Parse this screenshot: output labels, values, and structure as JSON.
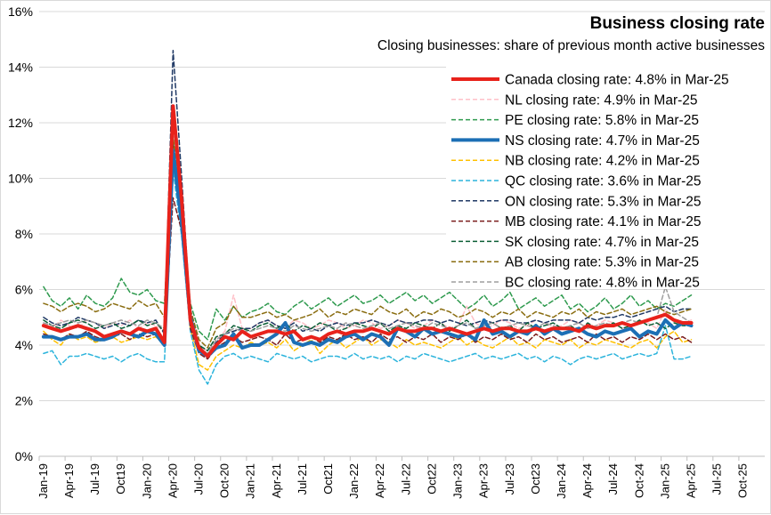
{
  "chart_data": {
    "type": "line",
    "title": "Business closing rate",
    "subtitle": "Closing businesses: share of previous month active businesses",
    "xlabel": "",
    "ylabel": "",
    "ylim": [
      0,
      16
    ],
    "yticks": [
      "0%",
      "2%",
      "4%",
      "6%",
      "8%",
      "10%",
      "12%",
      "14%",
      "16%"
    ],
    "x_start": "Jan-19",
    "x_ticks": [
      "Jan-19",
      "Apr-19",
      "Jul-19",
      "Oct19",
      "Jan-20",
      "Apr-20",
      "Jul-20",
      "Oct-20",
      "Jan-21",
      "Apr-21",
      "Jul-21",
      "Oct21",
      "Jan-22",
      "Apr-22",
      "Jul-22",
      "Oct22",
      "Jan-23",
      "Apr-23",
      "Jul-23",
      "Oct23",
      "Jan-24",
      "Apr-24",
      "Jul-24",
      "Oct-24",
      "Jan-25",
      "Apr-25",
      "Jul-25",
      "Oct-25"
    ],
    "grid": true,
    "legend_position": "top-right",
    "series": [
      {
        "name": "Canada closing rate: 4.8% in Mar-25",
        "color": "#e8221b",
        "width": 4,
        "dash": "",
        "values": [
          4.7,
          4.6,
          4.5,
          4.6,
          4.7,
          4.6,
          4.5,
          4.3,
          4.4,
          4.5,
          4.4,
          4.6,
          4.5,
          4.6,
          4.1,
          12.6,
          9.2,
          4.9,
          3.9,
          3.6,
          4.0,
          4.3,
          4.2,
          4.5,
          4.3,
          4.4,
          4.5,
          4.5,
          4.4,
          4.5,
          4.2,
          4.3,
          4.2,
          4.4,
          4.5,
          4.4,
          4.5,
          4.5,
          4.6,
          4.5,
          4.4,
          4.6,
          4.5,
          4.5,
          4.6,
          4.6,
          4.5,
          4.6,
          4.5,
          4.4,
          4.5,
          4.6,
          4.5,
          4.6,
          4.6,
          4.5,
          4.5,
          4.6,
          4.5,
          4.6,
          4.6,
          4.6,
          4.5,
          4.7,
          4.6,
          4.7,
          4.7,
          4.8,
          4.7,
          4.8,
          4.9,
          5.0,
          5.1,
          4.9,
          4.8,
          4.8
        ]
      },
      {
        "name": "NL closing rate: 4.9% in Mar-25",
        "color": "#ffc0c8",
        "width": 1.5,
        "dash": "5,3",
        "values": [
          4.8,
          4.6,
          4.9,
          4.7,
          4.6,
          4.9,
          4.8,
          4.6,
          4.8,
          4.7,
          4.9,
          4.6,
          4.8,
          4.7,
          4.5,
          11.6,
          8.8,
          5.0,
          3.9,
          3.8,
          4.2,
          4.5,
          5.8,
          4.6,
          4.6,
          4.8,
          4.9,
          4.7,
          4.6,
          4.9,
          4.8,
          4.6,
          4.7,
          4.9,
          4.8,
          4.6,
          4.7,
          4.9,
          4.8,
          4.6,
          4.7,
          4.9,
          4.8,
          4.6,
          4.7,
          4.9,
          4.8,
          4.6,
          4.7,
          5.4,
          4.8,
          4.6,
          4.7,
          4.9,
          4.8,
          4.6,
          4.7,
          4.9,
          4.8,
          4.6,
          4.7,
          4.9,
          4.8,
          4.6,
          4.7,
          4.9,
          4.8,
          4.6,
          4.7,
          4.9,
          4.8,
          4.6,
          5.3,
          4.9,
          4.8,
          4.9
        ]
      },
      {
        "name": "PE closing rate: 5.8% in Mar-25",
        "color": "#2e9a4e",
        "width": 1.5,
        "dash": "5,3",
        "values": [
          6.1,
          5.6,
          5.4,
          5.7,
          5.3,
          5.8,
          5.5,
          5.4,
          5.7,
          6.4,
          5.9,
          5.8,
          6.0,
          5.6,
          5.5,
          11.4,
          8.9,
          5.5,
          4.5,
          4.2,
          5.3,
          4.9,
          5.4,
          5.0,
          5.2,
          5.3,
          5.5,
          5.2,
          5.1,
          5.4,
          5.6,
          5.3,
          5.5,
          5.7,
          5.4,
          5.6,
          5.8,
          5.5,
          5.6,
          5.8,
          5.5,
          5.7,
          5.9,
          5.6,
          5.8,
          5.5,
          5.7,
          5.9,
          5.6,
          5.3,
          5.5,
          5.8,
          5.4,
          5.6,
          5.9,
          5.3,
          5.5,
          5.7,
          5.4,
          5.6,
          5.8,
          5.3,
          5.5,
          5.2,
          5.4,
          5.7,
          5.3,
          5.5,
          5.8,
          5.4,
          5.6,
          5.3,
          5.5,
          5.4,
          5.6,
          5.8
        ]
      },
      {
        "name": "NS closing rate: 4.7% in Mar-25",
        "color": "#1c6fb5",
        "width": 4,
        "dash": "",
        "values": [
          4.3,
          4.3,
          4.2,
          4.3,
          4.3,
          4.4,
          4.2,
          4.2,
          4.3,
          4.5,
          4.4,
          4.3,
          4.5,
          4.4,
          4.0,
          11.0,
          8.4,
          5.0,
          3.8,
          3.6,
          3.9,
          4.0,
          4.4,
          3.9,
          4.0,
          4.0,
          4.2,
          4.4,
          4.8,
          4.1,
          4.0,
          4.1,
          4.0,
          4.2,
          4.1,
          4.3,
          4.4,
          4.2,
          4.4,
          4.3,
          4.0,
          4.6,
          4.5,
          4.3,
          4.6,
          4.4,
          4.5,
          4.4,
          4.3,
          4.4,
          4.2,
          4.9,
          4.4,
          4.5,
          4.3,
          4.5,
          4.4,
          4.7,
          4.4,
          4.6,
          4.4,
          4.5,
          4.6,
          4.4,
          4.3,
          4.5,
          4.4,
          4.5,
          4.6,
          4.3,
          4.5,
          4.4,
          4.9,
          4.6,
          4.8,
          4.7
        ]
      },
      {
        "name": "NB closing rate: 4.2% in Mar-25",
        "color": "#ffc000",
        "width": 1.5,
        "dash": "5,3",
        "values": [
          4.5,
          4.2,
          4.0,
          4.4,
          4.2,
          4.3,
          4.1,
          4.2,
          4.3,
          4.1,
          4.2,
          4.3,
          4.2,
          4.3,
          4.0,
          10.9,
          8.3,
          4.6,
          3.3,
          3.1,
          3.6,
          3.8,
          4.0,
          3.9,
          4.1,
          4.0,
          4.1,
          3.9,
          4.2,
          3.8,
          4.0,
          4.2,
          3.7,
          4.0,
          4.2,
          3.9,
          4.1,
          4.3,
          4.0,
          4.2,
          4.1,
          3.9,
          4.2,
          4.0,
          4.1,
          4.0,
          3.9,
          4.1,
          4.3,
          4.0,
          4.2,
          4.0,
          3.9,
          4.1,
          4.3,
          4.0,
          4.1,
          3.9,
          4.2,
          4.1,
          4.0,
          4.2,
          3.9,
          4.1,
          4.0,
          4.2,
          4.1,
          4.0,
          3.9,
          4.1,
          4.2,
          3.9,
          4.3,
          4.5,
          4.1,
          4.2
        ]
      },
      {
        "name": "QC closing rate: 3.6% in Mar-25",
        "color": "#2cb4dc",
        "width": 1.5,
        "dash": "5,3",
        "values": [
          3.7,
          3.8,
          3.3,
          3.6,
          3.6,
          3.7,
          3.6,
          3.5,
          3.6,
          3.4,
          3.6,
          3.7,
          3.5,
          3.4,
          3.4,
          10.3,
          7.9,
          4.5,
          3.1,
          2.6,
          3.3,
          3.6,
          3.7,
          3.5,
          3.6,
          3.5,
          3.4,
          3.7,
          3.6,
          3.5,
          3.6,
          3.4,
          3.5,
          3.6,
          3.6,
          3.5,
          3.7,
          3.5,
          3.6,
          3.5,
          3.6,
          3.4,
          3.6,
          3.5,
          3.7,
          3.6,
          3.5,
          3.4,
          3.5,
          3.6,
          3.7,
          3.5,
          3.6,
          3.5,
          3.6,
          3.7,
          3.5,
          3.6,
          3.4,
          3.6,
          3.5,
          3.3,
          3.5,
          3.6,
          3.5,
          3.6,
          3.7,
          3.5,
          3.6,
          3.7,
          3.6,
          3.7,
          4.7,
          3.5,
          3.5,
          3.6
        ]
      },
      {
        "name": "ON closing rate: 5.3% in Mar-25",
        "color": "#1f3864",
        "width": 1.5,
        "dash": "5,3",
        "values": [
          5.0,
          4.8,
          4.7,
          4.8,
          5.0,
          4.9,
          4.8,
          4.6,
          4.7,
          4.8,
          4.7,
          4.9,
          4.8,
          4.9,
          4.4,
          14.6,
          10.0,
          5.2,
          4.0,
          3.6,
          4.1,
          4.4,
          4.5,
          4.6,
          4.6,
          4.8,
          4.9,
          4.7,
          4.6,
          4.8,
          4.5,
          4.6,
          4.5,
          4.7,
          4.8,
          4.7,
          4.8,
          4.8,
          4.9,
          4.8,
          4.7,
          4.9,
          4.8,
          4.8,
          4.9,
          4.9,
          4.8,
          4.9,
          4.8,
          4.7,
          4.8,
          4.9,
          4.8,
          4.9,
          4.9,
          4.8,
          4.8,
          4.9,
          4.8,
          4.9,
          4.9,
          4.9,
          4.8,
          5.0,
          4.9,
          5.0,
          5.0,
          5.1,
          5.0,
          5.1,
          5.2,
          5.3,
          5.4,
          5.2,
          5.3,
          5.3
        ]
      },
      {
        "name": "MB closing rate: 4.1% in Mar-25",
        "color": "#7b1c1c",
        "width": 1.5,
        "dash": "5,3",
        "values": [
          4.4,
          4.3,
          4.2,
          4.4,
          4.3,
          4.5,
          4.3,
          4.2,
          4.3,
          4.4,
          4.2,
          4.4,
          4.3,
          4.4,
          4.1,
          9.3,
          8.1,
          4.6,
          3.7,
          3.5,
          3.9,
          4.1,
          4.3,
          4.1,
          4.2,
          4.3,
          4.2,
          4.0,
          4.4,
          4.1,
          4.2,
          4.3,
          4.1,
          4.3,
          4.2,
          4.4,
          4.2,
          4.3,
          4.1,
          4.4,
          4.2,
          4.3,
          4.1,
          4.3,
          4.2,
          4.4,
          4.1,
          4.3,
          4.2,
          4.4,
          4.1,
          4.3,
          4.2,
          4.4,
          4.2,
          4.3,
          4.1,
          4.4,
          4.2,
          4.3,
          4.1,
          4.2,
          4.3,
          4.1,
          4.4,
          4.2,
          4.3,
          4.1,
          4.3,
          4.2,
          4.4,
          4.2,
          4.4,
          4.2,
          4.3,
          4.1
        ]
      },
      {
        "name": "SK closing rate: 4.7% in Mar-25",
        "color": "#0b5e35",
        "width": 1.5,
        "dash": "5,3",
        "values": [
          4.9,
          4.7,
          4.6,
          4.8,
          4.9,
          4.8,
          4.6,
          4.7,
          4.8,
          4.6,
          4.7,
          4.9,
          4.7,
          4.8,
          4.5,
          11.3,
          8.7,
          4.9,
          4.0,
          3.8,
          4.3,
          4.4,
          4.7,
          4.6,
          4.5,
          4.7,
          4.8,
          4.6,
          4.8,
          4.5,
          4.7,
          4.6,
          4.8,
          4.7,
          4.5,
          4.6,
          4.8,
          4.7,
          4.6,
          4.8,
          4.5,
          4.7,
          4.6,
          4.8,
          4.7,
          4.6,
          4.8,
          4.5,
          4.7,
          4.9,
          4.6,
          4.7,
          4.8,
          4.6,
          4.7,
          4.5,
          4.8,
          4.6,
          4.7,
          4.8,
          4.6,
          4.7,
          4.5,
          4.8,
          4.6,
          4.7,
          4.8,
          4.6,
          4.7,
          4.9,
          4.7,
          4.8,
          4.6,
          4.8,
          4.7,
          4.7
        ]
      },
      {
        "name": "AB closing rate: 5.3% in Mar-25",
        "color": "#8a6d10",
        "width": 1.5,
        "dash": "5,3",
        "values": [
          5.5,
          5.4,
          5.2,
          5.4,
          5.5,
          5.4,
          5.2,
          5.3,
          5.5,
          5.4,
          5.3,
          5.6,
          5.4,
          5.5,
          5.0,
          11.5,
          9.0,
          5.3,
          4.2,
          3.9,
          4.6,
          4.8,
          5.4,
          5.0,
          5.0,
          5.1,
          5.2,
          5.0,
          5.1,
          4.9,
          5.0,
          5.1,
          5.3,
          5.0,
          5.2,
          5.1,
          5.3,
          5.2,
          5.1,
          5.4,
          5.2,
          5.1,
          5.3,
          5.0,
          5.2,
          5.1,
          5.3,
          5.2,
          5.0,
          5.1,
          5.3,
          5.2,
          5.0,
          5.2,
          5.1,
          5.3,
          5.0,
          5.2,
          5.1,
          5.0,
          5.2,
          5.1,
          5.3,
          5.0,
          5.2,
          5.1,
          5.2,
          5.3,
          5.1,
          5.2,
          5.3,
          5.4,
          5.2,
          5.1,
          5.2,
          5.3
        ]
      },
      {
        "name": "BC closing rate: 4.8% in Mar-25",
        "color": "#9e9e9e",
        "width": 1.5,
        "dash": "5,3",
        "values": [
          4.8,
          4.7,
          4.8,
          4.9,
          4.8,
          4.9,
          4.8,
          4.7,
          4.8,
          4.9,
          4.8,
          4.7,
          4.9,
          4.8,
          4.6,
          12.0,
          9.1,
          5.0,
          3.9,
          3.7,
          4.2,
          4.4,
          4.6,
          4.5,
          4.5,
          4.6,
          4.7,
          4.6,
          4.5,
          4.7,
          4.6,
          4.5,
          4.6,
          4.7,
          4.6,
          4.8,
          4.7,
          4.6,
          4.7,
          4.8,
          4.6,
          4.7,
          4.8,
          4.7,
          4.6,
          4.8,
          4.7,
          4.6,
          4.7,
          4.8,
          4.6,
          4.7,
          4.8,
          4.6,
          4.7,
          4.8,
          4.7,
          4.6,
          4.8,
          4.7,
          4.6,
          4.7,
          4.8,
          4.6,
          4.7,
          4.8,
          4.7,
          4.8,
          4.9,
          4.8,
          4.9,
          5.0,
          6.1,
          5.2,
          5.0,
          4.8
        ]
      }
    ]
  }
}
